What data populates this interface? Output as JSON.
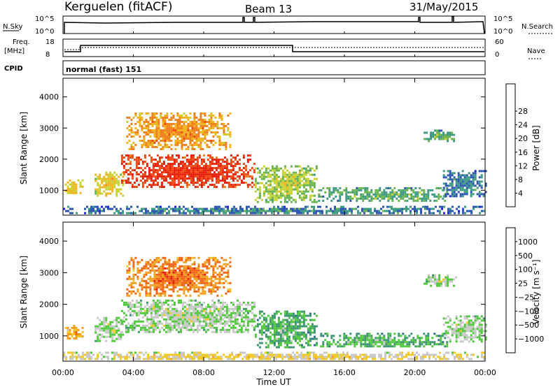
{
  "header": {
    "station": "Kerguelen (fitACF)",
    "beam": "Beam 13",
    "date": "31/May/2015"
  },
  "strips": {
    "nsky_label": "N.Sky",
    "nsky_ticks": [
      "10^5",
      "10^0"
    ],
    "nsearch_label": "N.Search",
    "nsearch_ticks": [
      "10^5",
      "10^0"
    ],
    "freq_label_top": "Freq.",
    "freq_label_bottom": "[MHz]",
    "freq_ticks": [
      "18",
      "8"
    ],
    "nave_label": "Nave",
    "nave_ticks": [
      "60",
      "0"
    ],
    "cpid_label": "CPID",
    "cpid_value": "normal (fast) 151"
  },
  "time_axis": {
    "title": "Time UT",
    "ticks": [
      "00:00",
      "04:00",
      "08:00",
      "12:00",
      "16:00",
      "20:00",
      "00:00"
    ]
  },
  "chart_data": [
    {
      "type": "heatmap",
      "panel": "power",
      "ylabel": "Slant Range [km]",
      "yticks": [
        "1000",
        "2000",
        "3000",
        "4000"
      ],
      "ylim": [
        200,
        4600
      ],
      "xlim_hours": [
        0,
        24
      ],
      "colorbar": {
        "label": "Power [dB]",
        "ticks": [
          "4",
          "8",
          "12",
          "16",
          "20",
          "24",
          "28"
        ],
        "colors": [
          "#1e1ee6",
          "#2d55b4",
          "#3c9b82",
          "#6ab450",
          "#c8d232",
          "#f0b41e",
          "#f0821e",
          "#f04b14",
          "#e61e0a"
        ]
      },
      "regions": [
        {
          "t0": 0.1,
          "t1": 1.1,
          "r0": 900,
          "r1": 1350,
          "level": 5
        },
        {
          "t0": 1.8,
          "t1": 3.4,
          "r0": 850,
          "r1": 1600,
          "level": 5
        },
        {
          "t0": 3.3,
          "t1": 10.9,
          "r0": 1100,
          "r1": 2150,
          "level": 8
        },
        {
          "t0": 3.6,
          "t1": 9.5,
          "r0": 2300,
          "r1": 3500,
          "level": 6
        },
        {
          "t0": 10.9,
          "t1": 14.4,
          "r0": 650,
          "r1": 1800,
          "level": 4
        },
        {
          "t0": 14.5,
          "t1": 21.8,
          "r0": 650,
          "r1": 1100,
          "level": 3
        },
        {
          "t0": 21.6,
          "t1": 24.0,
          "r0": 800,
          "r1": 1650,
          "level": 2
        },
        {
          "t0": 20.5,
          "t1": 22.3,
          "r0": 2600,
          "r1": 2950,
          "level": 3
        },
        {
          "t0": 0.0,
          "t1": 24.0,
          "r0": 250,
          "r1": 500,
          "level": 2
        }
      ]
    },
    {
      "type": "heatmap",
      "panel": "velocity",
      "ylabel": "Slant Range [km]",
      "yticks": [
        "1000",
        "2000",
        "3000",
        "4000"
      ],
      "ylim": [
        200,
        4600
      ],
      "xlim_hours": [
        0,
        24
      ],
      "colorbar": {
        "label": "Velocity [m s⁻¹]",
        "ticks": [
          "1000",
          "500",
          "100",
          "25",
          "−25",
          "−100",
          "−500",
          "−1000"
        ],
        "colors": [
          "#1e32b4",
          "#2d6e8c",
          "#3c966e",
          "#50c83c",
          "#c8c8c8",
          "#f0c828",
          "#f0a01e",
          "#f06414",
          "#e61e0a"
        ]
      },
      "regions": [
        {
          "t0": 0.1,
          "t1": 1.1,
          "r0": 900,
          "r1": 1350,
          "level": 6
        },
        {
          "t0": 1.8,
          "t1": 3.4,
          "r0": 850,
          "r1": 1600,
          "level": 4
        },
        {
          "t0": 3.3,
          "t1": 10.9,
          "r0": 1100,
          "r1": 2150,
          "level": 4
        },
        {
          "t0": 3.6,
          "t1": 9.5,
          "r0": 2300,
          "r1": 3500,
          "level": 7
        },
        {
          "t0": 10.9,
          "t1": 14.4,
          "r0": 650,
          "r1": 1800,
          "level": 3
        },
        {
          "t0": 14.5,
          "t1": 21.8,
          "r0": 650,
          "r1": 1100,
          "level": 3
        },
        {
          "t0": 21.6,
          "t1": 24.0,
          "r0": 800,
          "r1": 1650,
          "level": 4
        },
        {
          "t0": 20.5,
          "t1": 22.3,
          "r0": 2600,
          "r1": 2950,
          "level": 4
        },
        {
          "t0": 0.0,
          "t1": 24.0,
          "r0": 250,
          "r1": 500,
          "level": 5
        }
      ]
    }
  ]
}
